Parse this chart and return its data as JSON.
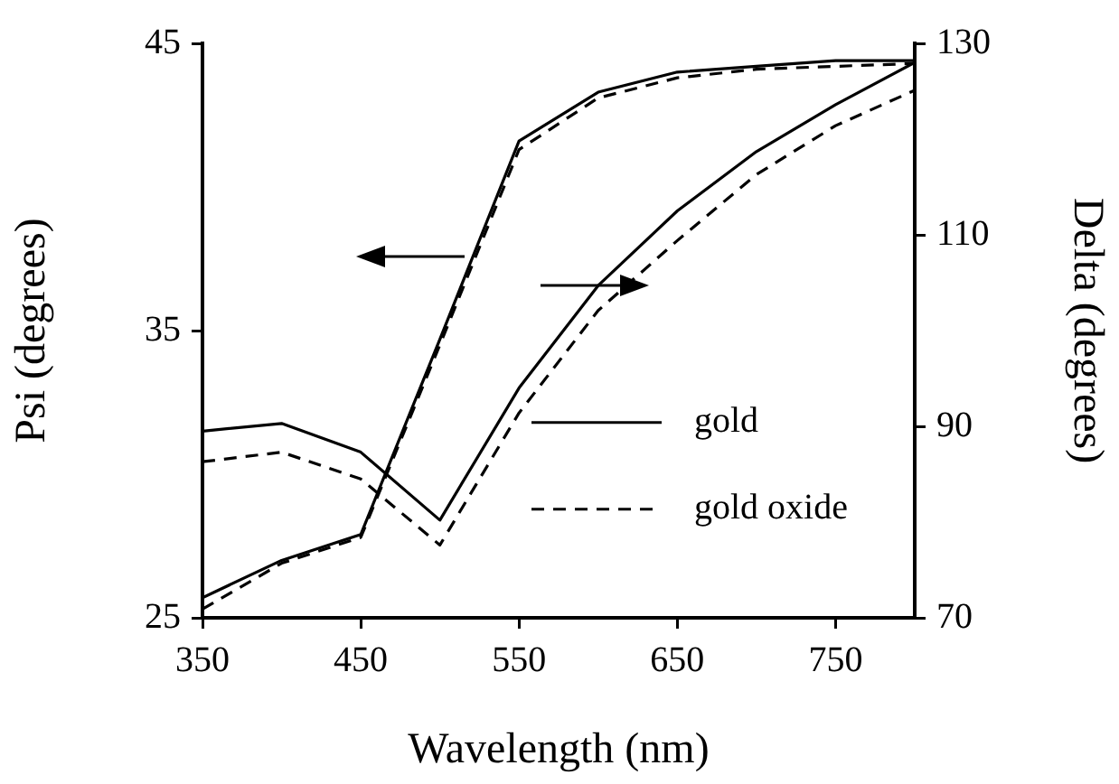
{
  "chart_data": {
    "type": "line",
    "xlabel": "Wavelength (nm)",
    "ylabel": "Psi (degrees)",
    "y2label": "Delta (degrees)",
    "x": [
      350,
      400,
      450,
      500,
      550,
      600,
      650,
      700,
      750,
      800
    ],
    "series": [
      {
        "name": "gold",
        "color": "#000000",
        "line_style": "solid",
        "values": [
          25.7,
          27.0,
          27.9,
          34.7,
          41.6,
          43.3,
          44.0,
          44.2,
          44.4,
          44.4
        ]
      },
      {
        "name": "gold oxide",
        "color": "#000000",
        "line_style": "dashed",
        "values": [
          25.3,
          26.9,
          27.8,
          34.5,
          41.3,
          43.1,
          43.8,
          44.1,
          44.2,
          44.3
        ]
      },
      {
        "color": "#000000",
        "line_style": "solid",
        "axis": "y2",
        "values": [
          89.5,
          90.3,
          87.3,
          80.2,
          94.0,
          104.7,
          112.5,
          118.7,
          123.6,
          128.0
        ]
      },
      {
        "color": "#000000",
        "line_style": "dashed",
        "axis": "y2",
        "values": [
          86.3,
          87.3,
          84.5,
          77.6,
          91.4,
          102.1,
          109.4,
          116.3,
          121.4,
          125.1
        ]
      }
    ],
    "xlim": [
      350,
      800
    ],
    "xticks": [
      350,
      450,
      550,
      650,
      750
    ],
    "ylim": [
      25,
      45
    ],
    "yticks": [
      25,
      35,
      45
    ],
    "y2lim": [
      70,
      130
    ],
    "y2ticks": [
      70,
      90,
      110,
      130
    ],
    "grid": false,
    "legend": "right",
    "marker": "none"
  }
}
